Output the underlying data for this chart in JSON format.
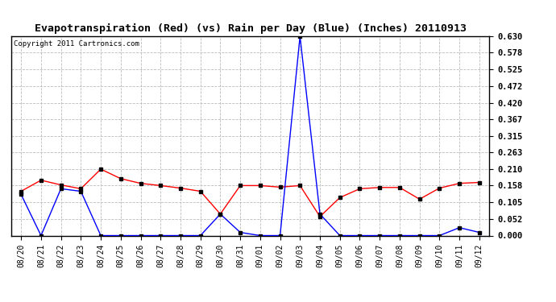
{
  "title": "Evapotranspiration (Red) (vs) Rain per Day (Blue) (Inches) 20110913",
  "copyright": "Copyright 2011 Cartronics.com",
  "x_labels": [
    "08/20",
    "08/21",
    "08/22",
    "08/23",
    "08/24",
    "08/25",
    "08/26",
    "08/27",
    "08/28",
    "08/29",
    "08/30",
    "08/31",
    "09/01",
    "09/02",
    "09/03",
    "09/04",
    "09/05",
    "09/06",
    "09/07",
    "09/08",
    "09/09",
    "09/10",
    "09/11",
    "09/12"
  ],
  "red_data": [
    0.14,
    0.175,
    0.16,
    0.148,
    0.21,
    0.18,
    0.165,
    0.158,
    0.15,
    0.14,
    0.068,
    0.158,
    0.158,
    0.153,
    0.158,
    0.06,
    0.12,
    0.148,
    0.152,
    0.152,
    0.115,
    0.15,
    0.165,
    0.168
  ],
  "blue_data": [
    0.13,
    0.0,
    0.148,
    0.14,
    0.0,
    0.0,
    0.0,
    0.0,
    0.0,
    0.0,
    0.068,
    0.01,
    0.0,
    0.0,
    0.63,
    0.068,
    0.0,
    0.0,
    0.0,
    0.0,
    0.0,
    0.0,
    0.025,
    0.01
  ],
  "y_ticks": [
    0.0,
    0.052,
    0.105,
    0.158,
    0.21,
    0.263,
    0.315,
    0.367,
    0.42,
    0.472,
    0.525,
    0.578,
    0.63
  ],
  "ylim": [
    0.0,
    0.63
  ],
  "red_color": "#ff0000",
  "blue_color": "#0000ff",
  "bg_color": "#ffffff",
  "grid_color": "#bbbbbb",
  "title_fontsize": 9.5,
  "copyright_fontsize": 6.5,
  "tick_fontsize": 7,
  "ytick_fontsize": 7.5
}
